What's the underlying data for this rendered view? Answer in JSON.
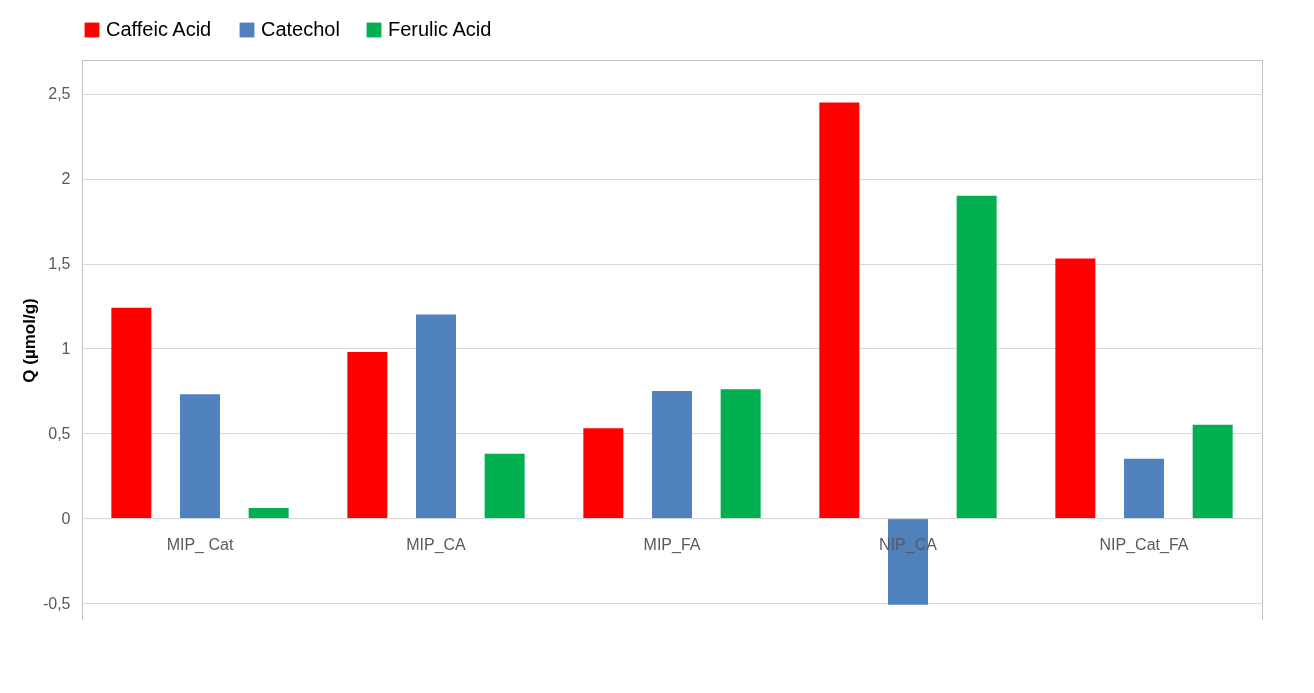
{
  "chart_data": {
    "type": "bar",
    "ylabel": "Q (µmol/g)",
    "categories": [
      "MIP_ Cat",
      "MIP_CA",
      "MIP_FA",
      "NIP_CA",
      "NIP_Cat_FA"
    ],
    "series": [
      {
        "name": "Caffeic Acid",
        "color": "#ff0000",
        "values": [
          1.24,
          0.98,
          0.53,
          2.45,
          1.53
        ]
      },
      {
        "name": "Catechol",
        "color": "#4f81bd",
        "values": [
          0.73,
          1.2,
          0.75,
          -0.51,
          0.35
        ]
      },
      {
        "name": "Ferulic Acid",
        "color": "#00b050",
        "values": [
          0.06,
          0.38,
          0.76,
          1.9,
          0.55
        ]
      }
    ],
    "ylim": [
      -0.6,
      2.7
    ],
    "yticks": [
      {
        "value": -0.5,
        "label": "-0,5"
      },
      0,
      {
        "value": 0.5,
        "label": "0,5"
      },
      1,
      {
        "value": 1.5,
        "label": "1,5"
      },
      2,
      {
        "value": 2.5,
        "label": "2,5"
      }
    ],
    "grid": "y",
    "legend": "top"
  }
}
